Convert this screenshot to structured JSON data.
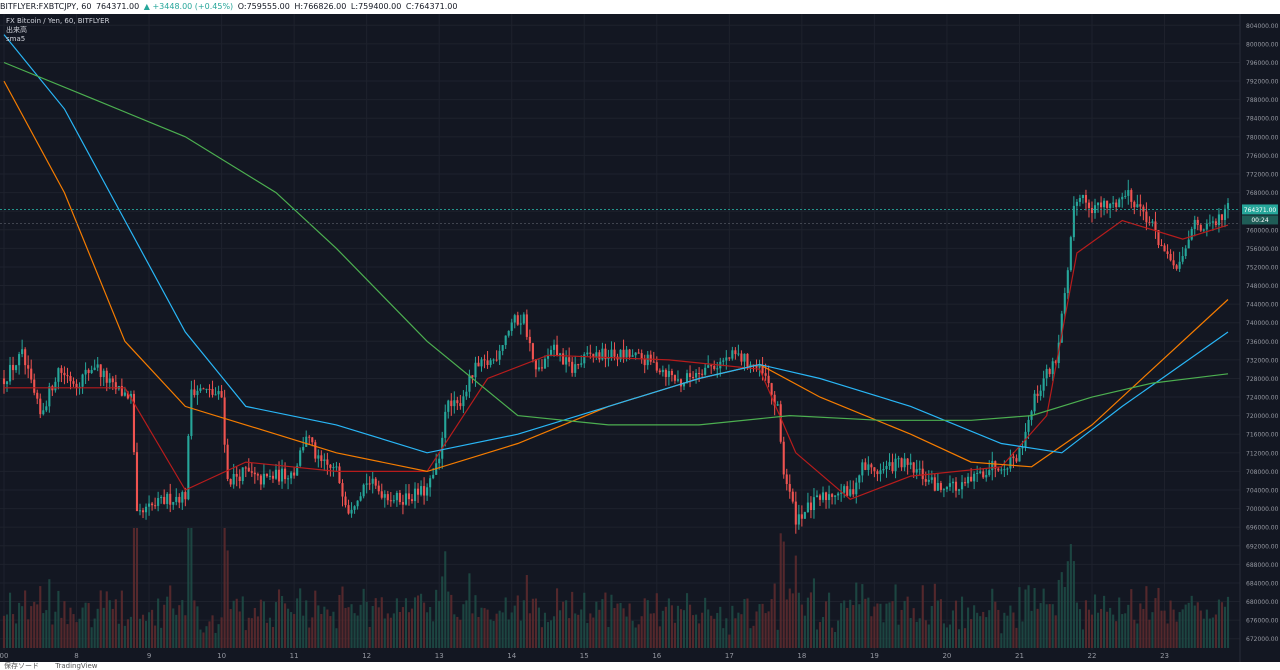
{
  "header": {
    "symbol": "BITFLYER:FXBTCJPY, 60",
    "last": "764371.00",
    "change": "▲ +3448.00 (+0.45%)",
    "open": "O:759555.00",
    "high": "H:766826.00",
    "low": "L:759400.00",
    "close": "C:764371.00"
  },
  "legend": {
    "line1": "FX Bitcoin / Yen, 60, BITFLYER",
    "line2": "出来高",
    "line3": "sma5"
  },
  "price_tag": {
    "value": "764371.00",
    "countdown": "00:24"
  },
  "footer": {
    "label": "保存ソード",
    "brand": "TradingView"
  },
  "colors": {
    "background": "#131722",
    "up": "#26a69a",
    "down": "#ef5350",
    "sma_red": "#b71c1c",
    "sma_orange": "#f57c00",
    "sma_blue": "#29b6f6",
    "sma_green": "#4caf50"
  },
  "chart_data": {
    "type": "candlestick",
    "xlabel": "",
    "ylabel": "",
    "y_ticks": [
      804000,
      800000,
      796000,
      792000,
      788000,
      784000,
      780000,
      776000,
      772000,
      768000,
      764000,
      760000,
      756000,
      752000,
      748000,
      744000,
      740000,
      736000,
      732000,
      728000,
      724000,
      720000,
      716000,
      712000,
      708000,
      704000,
      700000,
      696000,
      692000,
      688000,
      684000,
      680000,
      676000,
      672000
    ],
    "y_tick_labels": [
      "804000.00",
      "800000.00",
      "796000.00",
      "792000.00",
      "788000.00",
      "784000.00",
      "780000.00",
      "776000.00",
      "772000.00",
      "768000.00",
      "764000.00",
      "760000.00",
      "756000.00",
      "752000.00",
      "748000.00",
      "744000.00",
      "740000.00",
      "736000.00",
      "732000.00",
      "728000.00",
      "724000.00",
      "720000.00",
      "716000.00",
      "712000.00",
      "708000.00",
      "704000.00",
      "700000.00",
      "696000.00",
      "692000.00",
      "688000.00",
      "684000.00",
      "680000.00",
      "676000.00",
      "672000.00"
    ],
    "ylim": [
      670000,
      806000
    ],
    "x_ticks": [
      {
        "label": "00",
        "hour": 0
      },
      {
        "label": "8",
        "hour": 24
      },
      {
        "label": "9",
        "hour": 48
      },
      {
        "label": "10",
        "hour": 72
      },
      {
        "label": "11",
        "hour": 96
      },
      {
        "label": "12",
        "hour": 120
      },
      {
        "label": "13",
        "hour": 144
      },
      {
        "label": "14",
        "hour": 168
      },
      {
        "label": "15",
        "hour": 192
      },
      {
        "label": "16",
        "hour": 216
      },
      {
        "label": "17",
        "hour": 240
      },
      {
        "label": "18",
        "hour": 264
      },
      {
        "label": "19",
        "hour": 288
      },
      {
        "label": "20",
        "hour": 312
      },
      {
        "label": "21",
        "hour": 336
      },
      {
        "label": "22",
        "hour": 360
      },
      {
        "label": "23",
        "hour": 384
      }
    ],
    "xlim": [
      0,
      405
    ],
    "last_price": 764371,
    "price_path": [
      [
        0,
        728000
      ],
      [
        6,
        733000
      ],
      [
        12,
        720000
      ],
      [
        18,
        730000
      ],
      [
        24,
        727000
      ],
      [
        30,
        731000
      ],
      [
        36,
        726000
      ],
      [
        42,
        724000
      ],
      [
        44,
        698000
      ],
      [
        48,
        700000
      ],
      [
        54,
        702000
      ],
      [
        60,
        703000
      ],
      [
        62,
        726000
      ],
      [
        68,
        725000
      ],
      [
        72,
        724000
      ],
      [
        74,
        706000
      ],
      [
        80,
        708000
      ],
      [
        84,
        706000
      ],
      [
        90,
        707000
      ],
      [
        96,
        708000
      ],
      [
        100,
        716000
      ],
      [
        104,
        710000
      ],
      [
        110,
        708000
      ],
      [
        114,
        700000
      ],
      [
        120,
        706000
      ],
      [
        124,
        704000
      ],
      [
        130,
        702000
      ],
      [
        136,
        703000
      ],
      [
        140,
        704000
      ],
      [
        144,
        710000
      ],
      [
        146,
        722000
      ],
      [
        150,
        722000
      ],
      [
        156,
        730000
      ],
      [
        162,
        732000
      ],
      [
        168,
        740000
      ],
      [
        172,
        741000
      ],
      [
        176,
        729000
      ],
      [
        182,
        734000
      ],
      [
        188,
        730000
      ],
      [
        194,
        733000
      ],
      [
        200,
        733000
      ],
      [
        206,
        733000
      ],
      [
        212,
        732000
      ],
      [
        218,
        730000
      ],
      [
        224,
        727000
      ],
      [
        230,
        730000
      ],
      [
        236,
        731000
      ],
      [
        242,
        733000
      ],
      [
        248,
        731000
      ],
      [
        252,
        728000
      ],
      [
        256,
        721000
      ],
      [
        258,
        708000
      ],
      [
        260,
        703000
      ],
      [
        262,
        698000
      ],
      [
        266,
        700000
      ],
      [
        270,
        702000
      ],
      [
        276,
        704000
      ],
      [
        280,
        703000
      ],
      [
        284,
        709000
      ],
      [
        290,
        708000
      ],
      [
        296,
        710000
      ],
      [
        302,
        708000
      ],
      [
        306,
        706000
      ],
      [
        310,
        704000
      ],
      [
        312,
        706000
      ],
      [
        316,
        704000
      ],
      [
        320,
        706000
      ],
      [
        326,
        709000
      ],
      [
        332,
        710000
      ],
      [
        336,
        712000
      ],
      [
        340,
        722000
      ],
      [
        344,
        728000
      ],
      [
        348,
        732000
      ],
      [
        352,
        750000
      ],
      [
        354,
        764000
      ],
      [
        356,
        768000
      ],
      [
        360,
        765000
      ],
      [
        366,
        765000
      ],
      [
        372,
        768000
      ],
      [
        378,
        763000
      ],
      [
        382,
        758000
      ],
      [
        386,
        752000
      ],
      [
        390,
        753000
      ],
      [
        394,
        762000
      ],
      [
        398,
        760000
      ],
      [
        402,
        762000
      ],
      [
        405,
        764371
      ]
    ],
    "sma_series": [
      {
        "color": "#b71c1c",
        "points": [
          [
            0,
            726000
          ],
          [
            40,
            726000
          ],
          [
            60,
            704000
          ],
          [
            80,
            710000
          ],
          [
            110,
            708000
          ],
          [
            140,
            708000
          ],
          [
            160,
            728000
          ],
          [
            180,
            733000
          ],
          [
            220,
            732000
          ],
          [
            250,
            730000
          ],
          [
            262,
            712000
          ],
          [
            280,
            702000
          ],
          [
            300,
            707000
          ],
          [
            330,
            709000
          ],
          [
            345,
            720000
          ],
          [
            355,
            755000
          ],
          [
            370,
            762000
          ],
          [
            390,
            758000
          ],
          [
            405,
            761000
          ]
        ]
      },
      {
        "color": "#f57c00",
        "points": [
          [
            0,
            792000
          ],
          [
            20,
            768000
          ],
          [
            40,
            736000
          ],
          [
            60,
            722000
          ],
          [
            80,
            718000
          ],
          [
            110,
            712000
          ],
          [
            140,
            708000
          ],
          [
            170,
            714000
          ],
          [
            200,
            722000
          ],
          [
            230,
            728000
          ],
          [
            250,
            731000
          ],
          [
            270,
            724000
          ],
          [
            300,
            716000
          ],
          [
            320,
            710000
          ],
          [
            340,
            709000
          ],
          [
            360,
            718000
          ],
          [
            380,
            730000
          ],
          [
            405,
            745000
          ]
        ]
      },
      {
        "color": "#29b6f6",
        "points": [
          [
            0,
            802000
          ],
          [
            20,
            786000
          ],
          [
            40,
            762000
          ],
          [
            60,
            738000
          ],
          [
            80,
            722000
          ],
          [
            110,
            718000
          ],
          [
            140,
            712000
          ],
          [
            170,
            716000
          ],
          [
            200,
            722000
          ],
          [
            230,
            728000
          ],
          [
            250,
            731000
          ],
          [
            270,
            728000
          ],
          [
            300,
            722000
          ],
          [
            330,
            714000
          ],
          [
            350,
            712000
          ],
          [
            370,
            722000
          ],
          [
            405,
            738000
          ]
        ]
      },
      {
        "color": "#4caf50",
        "points": [
          [
            0,
            796000
          ],
          [
            30,
            788000
          ],
          [
            60,
            780000
          ],
          [
            90,
            768000
          ],
          [
            110,
            756000
          ],
          [
            140,
            736000
          ],
          [
            170,
            720000
          ],
          [
            200,
            718000
          ],
          [
            230,
            718000
          ],
          [
            260,
            720000
          ],
          [
            290,
            719000
          ],
          [
            320,
            719000
          ],
          [
            340,
            720000
          ],
          [
            360,
            724000
          ],
          [
            380,
            727000
          ],
          [
            405,
            729000
          ]
        ]
      }
    ]
  }
}
